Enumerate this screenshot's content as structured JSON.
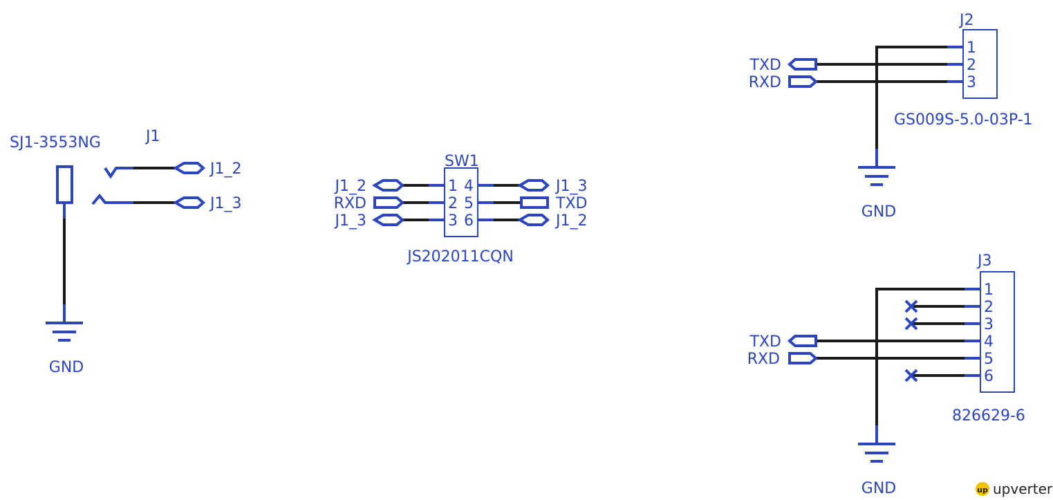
{
  "colors": {
    "symbol": "#2b45bd",
    "wire": "#1a1a1a",
    "background": "#ffffff",
    "logo_badge": "#f2c300"
  },
  "jack": {
    "part_number": "SJ1-3553NG",
    "ref": "J1",
    "nets": [
      "J1_2",
      "J1_3"
    ],
    "ground": "GND"
  },
  "switch": {
    "ref": "SW1",
    "part_number": "JS202011CQN",
    "left_pins": [
      "1",
      "2",
      "3"
    ],
    "right_pins": [
      "4",
      "5",
      "6"
    ],
    "left_nets": [
      "J1_2",
      "RXD",
      "J1_3"
    ],
    "right_nets": [
      "J1_3",
      "TXD",
      "J1_2"
    ]
  },
  "connector_j2": {
    "ref": "J2",
    "part_number": "GS009S-5.0-03P-1",
    "pins": [
      "1",
      "2",
      "3"
    ],
    "nets": [
      "TXD",
      "RXD"
    ],
    "ground": "GND"
  },
  "connector_j3": {
    "ref": "J3",
    "part_number": "826629-6",
    "pins": [
      "1",
      "2",
      "3",
      "4",
      "5",
      "6"
    ],
    "nets": [
      "TXD",
      "RXD"
    ],
    "ground": "GND"
  },
  "logo": {
    "text": "upverter",
    "icon": "upverter-bulb-icon"
  }
}
